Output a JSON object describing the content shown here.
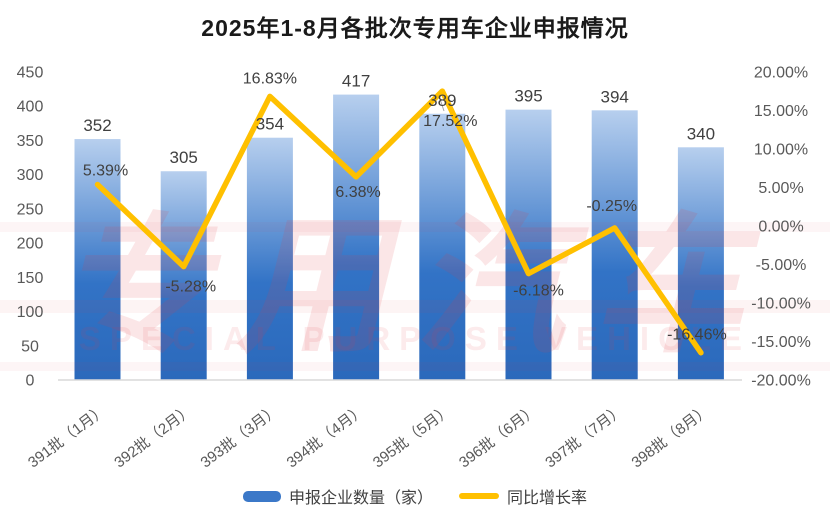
{
  "title": "2025年1-8月各批次专用车企业申报情况",
  "watermark": {
    "cn": "专用汽车",
    "en": "SPECIAL PURPOSE VEHICLE"
  },
  "legend": {
    "bar_label": "申报企业数量（家）",
    "line_label": "同比增长率"
  },
  "colors": {
    "bar_gradient_top": "#b7cfee",
    "bar_gradient_mid": "#3273c6",
    "bar_gradient_bottom": "#2b69bb",
    "bar_solid": "#3b78c8",
    "line": "#ffc000",
    "axis_text": "#595959",
    "data_label_text": "#404040",
    "baseline": "#d9d9d9",
    "watermark_red": "#e03c46",
    "leader_line": "#a6a6a6"
  },
  "chart_data": {
    "type": "bar+line",
    "title": "2025年1-8月各批次专用车企业申报情况",
    "categories": [
      "391批（1月）",
      "392批（2月）",
      "393批（3月）",
      "394批（4月）",
      "395批（5月）",
      "396批（6月）",
      "397批（7月）",
      "398批（8月）"
    ],
    "series": [
      {
        "name": "申报企业数量（家）",
        "type": "bar",
        "axis": "left",
        "values": [
          352,
          305,
          354,
          417,
          389,
          395,
          394,
          340
        ],
        "labels": [
          "352",
          "305",
          "354",
          "417",
          "389",
          "395",
          "394",
          "340"
        ]
      },
      {
        "name": "同比增长率",
        "type": "line",
        "axis": "right",
        "values": [
          5.39,
          -5.28,
          16.83,
          6.38,
          17.52,
          -6.18,
          -0.25,
          -16.46
        ],
        "labels": [
          "5.39%",
          "-5.28%",
          "16.83%",
          "6.38%",
          "17.52%",
          "-6.18%",
          "-0.25%",
          "-16.46%"
        ]
      }
    ],
    "left_axis": {
      "min": 0,
      "max": 450,
      "step": 50,
      "tick_values": [
        0,
        50,
        100,
        150,
        200,
        250,
        300,
        350,
        400,
        450
      ],
      "tick_labels": [
        "0",
        "50",
        "100",
        "150",
        "200",
        "250",
        "300",
        "350",
        "400",
        "450"
      ]
    },
    "right_axis": {
      "min": -20,
      "max": 20,
      "step": 5,
      "tick_values": [
        -20,
        -15,
        -10,
        -5,
        0,
        5,
        10,
        15,
        20
      ],
      "tick_labels": [
        "-20.00%",
        "-15.00%",
        "-10.00%",
        "-5.00%",
        "0.00%",
        "5.00%",
        "10.00%",
        "15.00%",
        "20.00%"
      ]
    },
    "grid": false,
    "legend_position": "bottom"
  }
}
